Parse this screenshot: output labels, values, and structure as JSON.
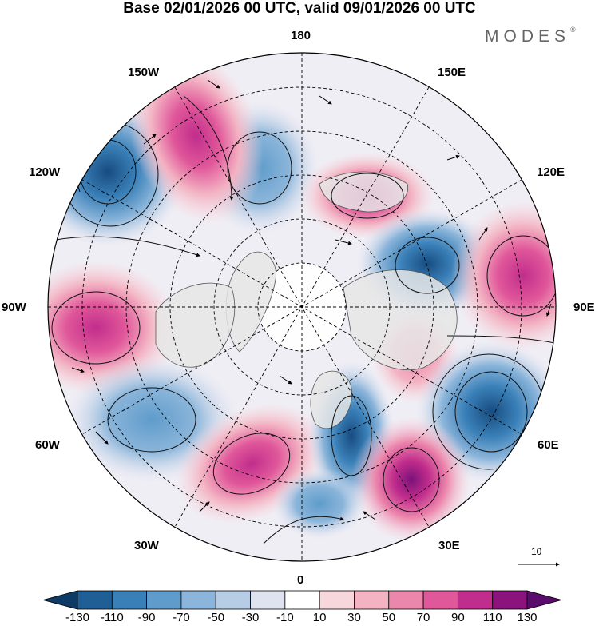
{
  "title": "Base 02/01/2026 00 UTC, valid 09/01/2026 00 UTC",
  "brand": {
    "name": "MODES",
    "mark": "®"
  },
  "longitude_labels": {
    "lon_180": "180",
    "lon_150w": "150W",
    "lon_150e": "150E",
    "lon_120w": "120W",
    "lon_120e": "120E",
    "lon_90w": "90W",
    "lon_90e": "90E",
    "lon_60w": "60W",
    "lon_60e": "60E",
    "lon_30w": "30W",
    "lon_30e": "30E",
    "lon_0": "0"
  },
  "reference_vector": {
    "value": "10"
  },
  "colorbar": {
    "ticks": [
      "-130",
      "-110",
      "-90",
      "-70",
      "-50",
      "-30",
      "-10",
      "10",
      "30",
      "50",
      "70",
      "90",
      "110",
      "130"
    ],
    "colors": [
      "#0d3b66",
      "#1f5f96",
      "#3a80b8",
      "#5f9ccb",
      "#8bb5da",
      "#b7cde6",
      "#dfe3f0",
      "#ffffff",
      "#f8d7dc",
      "#f3b3c3",
      "#ec87ac",
      "#e0579a",
      "#c12d8c",
      "#8a137c",
      "#5b0b6b"
    ]
  },
  "map_features": {
    "anomaly_centers": [
      {
        "name": "low-120w",
        "sign": "negative"
      },
      {
        "name": "low-150w-180",
        "sign": "negative"
      },
      {
        "name": "high-150w",
        "sign": "positive"
      },
      {
        "name": "high-150e",
        "sign": "positive"
      },
      {
        "name": "low-120e",
        "sign": "negative"
      },
      {
        "name": "high-90e",
        "sign": "positive"
      },
      {
        "name": "high-90w",
        "sign": "positive"
      },
      {
        "name": "high-inner-east",
        "sign": "positive"
      },
      {
        "name": "low-60e",
        "sign": "negative"
      },
      {
        "name": "low-60w",
        "sign": "negative"
      },
      {
        "name": "high-30w",
        "sign": "positive"
      },
      {
        "name": "low-0",
        "sign": "negative"
      },
      {
        "name": "high-30e",
        "sign": "positive"
      },
      {
        "name": "low-15w",
        "sign": "negative"
      }
    ]
  }
}
